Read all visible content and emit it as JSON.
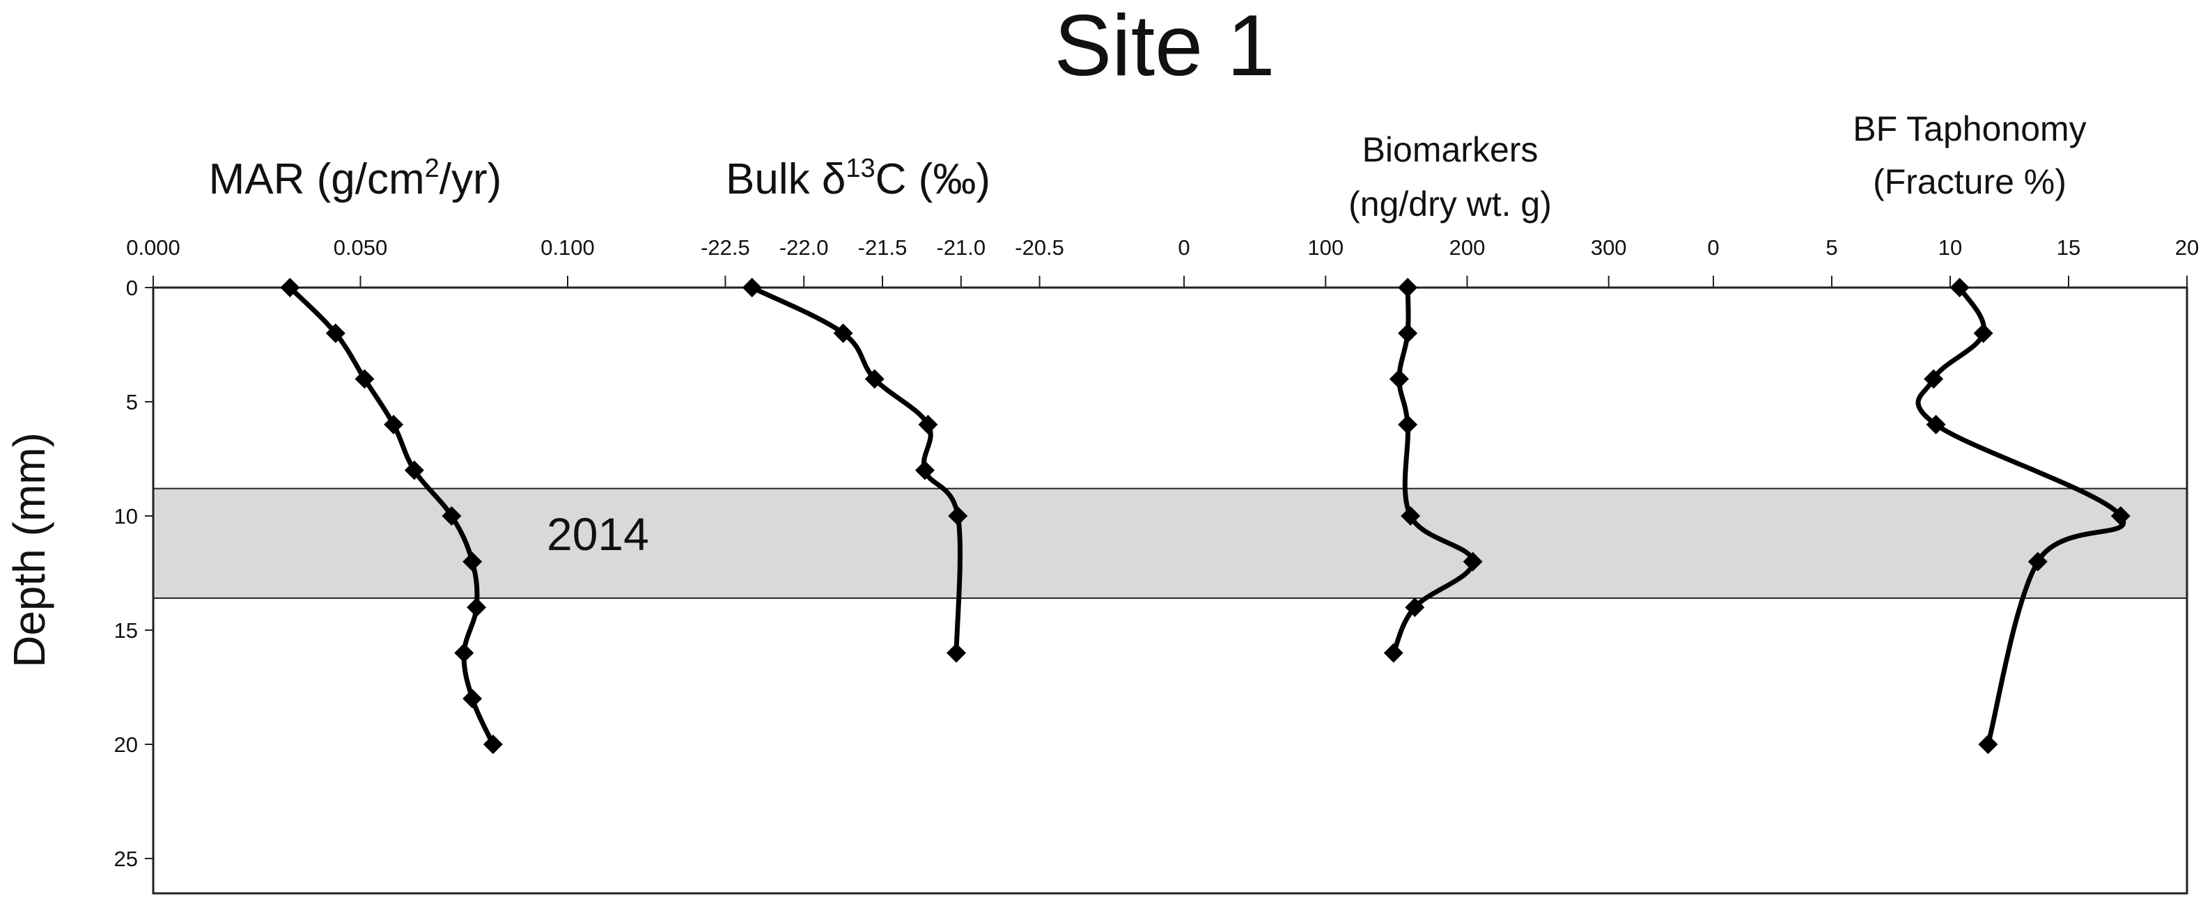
{
  "chart_data": {
    "type": "line",
    "title": "Site 1",
    "ylabel": "Depth (mm)",
    "y_axis": {
      "ticks": [
        "0",
        "5",
        "10",
        "15",
        "20",
        "25"
      ],
      "range": [
        0,
        26.5
      ],
      "inverted": true
    },
    "band": {
      "label": "2014",
      "depth_range": [
        8.8,
        13.6
      ],
      "color": "#d9d9d9"
    },
    "panels": [
      {
        "name": "MAR",
        "header": [
          "MAR (g/cm",
          "2",
          "/yr)"
        ],
        "xlim": [
          0.0,
          0.1
        ],
        "x_ticks": [
          "0.000",
          "0.050",
          "0.100"
        ],
        "series": [
          {
            "x": [
              0.033,
              0.044,
              0.051,
              0.058,
              0.063,
              0.072,
              0.077,
              0.078,
              0.075,
              0.077,
              0.082
            ],
            "y": [
              0,
              2,
              4,
              6,
              8,
              10,
              12,
              14,
              16,
              18,
              20
            ]
          }
        ]
      },
      {
        "name": "Bulk d13C",
        "header": [
          "Bulk δ",
          "13",
          "C  (‰)"
        ],
        "xlim": [
          -22.75,
          -20.25
        ],
        "x_ticks": [
          "-22.5",
          "-22.0",
          "-21.5",
          "-21.0",
          "-20.5"
        ],
        "series": [
          {
            "x": [
              -22.33,
              -21.75,
              -21.55,
              -21.21,
              -21.23,
              -21.02,
              -21.03
            ],
            "y": [
              0,
              2,
              4,
              6,
              8,
              10,
              16
            ]
          }
        ]
      },
      {
        "name": "Biomarkers",
        "header": [
          "Biomarkers",
          "(ng/dry wt. g)"
        ],
        "xlim": [
          0,
          340
        ],
        "x_ticks": [
          "0",
          "100",
          "200",
          "300"
        ],
        "series": [
          {
            "x": [
              158,
              158,
              152,
              158,
              160,
              204,
              163,
              148
            ],
            "y": [
              0,
              2,
              4,
              6,
              10,
              12,
              14,
              16
            ]
          }
        ]
      },
      {
        "name": "BF Taphonomy",
        "header": [
          "BF Taphonomy",
          "(Fracture %)"
        ],
        "xlim": [
          0,
          20
        ],
        "x_ticks": [
          "0",
          "5",
          "10",
          "15",
          "20"
        ],
        "series": [
          {
            "x": [
              10.4,
              11.4,
              9.3,
              9.4,
              17.2,
              13.7,
              11.6
            ],
            "y": [
              0,
              2,
              4,
              6,
              10,
              12,
              20
            ]
          }
        ]
      }
    ],
    "style": {
      "line_color": "#000000",
      "marker": "diamond",
      "grid": false
    }
  }
}
